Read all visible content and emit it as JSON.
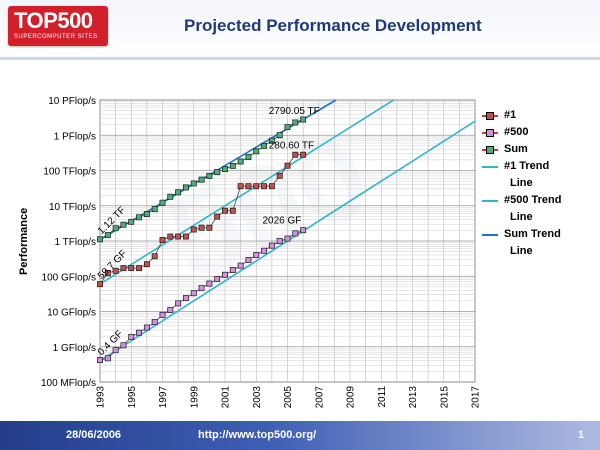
{
  "header": {
    "logo_text": "TOP500",
    "logo_sub": "SUPERCOMPUTER SITES",
    "title": "Projected Performance Development"
  },
  "footer": {
    "date": "28/06/2006",
    "url": "http://www.top500.org/",
    "page": "1"
  },
  "colors": {
    "n1": "#c0504d",
    "n500": "#d48ee6",
    "sum": "#4caf75",
    "n1_trend": "#2fb5c9",
    "n500_trend": "#2fb5c9",
    "sum_trend": "#1a73c9"
  },
  "chart_data": {
    "type": "line",
    "title": "Projected Performance Development",
    "xlabel": "",
    "ylabel": "Performance",
    "yscale": "log",
    "ylim_gflops": [
      0.1,
      10000000
    ],
    "xlim": [
      1993,
      2017
    ],
    "x_ticks": [
      "1993",
      "1995",
      "1997",
      "1999",
      "2001",
      "2003",
      "2005",
      "2007",
      "2009",
      "2011",
      "2013",
      "2015",
      "2017"
    ],
    "y_ticks": [
      {
        "label": "100 MFlop/s",
        "value": 0.1
      },
      {
        "label": "1 GFlop/s",
        "value": 1
      },
      {
        "label": "10 GFlop/s",
        "value": 10
      },
      {
        "label": "100 GFlop/s",
        "value": 100
      },
      {
        "label": "1 TFlop/s",
        "value": 1000
      },
      {
        "label": "10 TFlop/s",
        "value": 10000
      },
      {
        "label": "100 TFlop/s",
        "value": 100000
      },
      {
        "label": "1 PFlop/s",
        "value": 1000000
      },
      {
        "label": "10 PFlop/s",
        "value": 10000000
      }
    ],
    "series": [
      {
        "name": "#1",
        "key": "n1",
        "x": [
          1993.0,
          1993.5,
          1994.0,
          1994.5,
          1995.0,
          1995.5,
          1996.0,
          1996.5,
          1997.0,
          1997.5,
          1998.0,
          1998.5,
          1999.0,
          1999.5,
          2000.0,
          2000.5,
          2001.0,
          2001.5,
          2002.0,
          2002.5,
          2003.0,
          2003.5,
          2004.0,
          2004.5,
          2005.0,
          2005.5,
          2006.0
        ],
        "values": [
          59.7,
          124,
          143,
          170,
          170,
          170,
          220,
          368,
          1068,
          1338,
          1338,
          1338,
          2121,
          2379,
          2379,
          4938,
          7226,
          7226,
          35860,
          35860,
          35860,
          35860,
          35860,
          70720,
          136800,
          280600,
          280600
        ]
      },
      {
        "name": "#500",
        "key": "n500",
        "x": [
          1993.0,
          1993.5,
          1994.0,
          1994.5,
          1995.0,
          1995.5,
          1996.0,
          1996.5,
          1997.0,
          1997.5,
          1998.0,
          1998.5,
          1999.0,
          1999.5,
          2000.0,
          2000.5,
          2001.0,
          2001.5,
          2002.0,
          2002.5,
          2003.0,
          2003.5,
          2004.0,
          2004.5,
          2005.0,
          2005.5,
          2006.0
        ],
        "values": [
          0.42,
          0.47,
          0.8,
          1.1,
          1.9,
          2.5,
          3.5,
          5,
          8,
          11,
          17,
          24,
          33,
          46,
          62,
          83,
          110,
          150,
          200,
          290,
          400,
          530,
          740,
          1000,
          1170,
          1640,
          2026
        ]
      },
      {
        "name": "Sum",
        "key": "sum",
        "x": [
          1993.0,
          1993.5,
          1994.0,
          1994.5,
          1995.0,
          1995.5,
          1996.0,
          1996.5,
          1997.0,
          1997.5,
          1998.0,
          1998.5,
          1999.0,
          1999.5,
          2000.0,
          2000.5,
          2001.0,
          2001.5,
          2002.0,
          2002.5,
          2003.0,
          2003.5,
          2004.0,
          2004.5,
          2005.0,
          2005.5,
          2006.0
        ],
        "values": [
          1120,
          1470,
          2300,
          2900,
          3500,
          4700,
          5800,
          8000,
          12200,
          18000,
          24000,
          33000,
          43000,
          55000,
          70000,
          90000,
          110000,
          135000,
          180000,
          240000,
          350000,
          500000,
          700000,
          1000000,
          1700000,
          2300000,
          2790050
        ]
      },
      {
        "name": "#1 Trend Line",
        "key": "n1_trend",
        "trend": true,
        "from": [
          1993,
          60
        ],
        "to": [
          2011.8,
          10000000
        ]
      },
      {
        "name": "#500 Trend Line",
        "key": "n500_trend",
        "trend": true,
        "from": [
          1993,
          0.4
        ],
        "to": [
          2017,
          2500000
        ]
      },
      {
        "name": "Sum Trend Line",
        "key": "sum_trend",
        "trend": true,
        "from": [
          1993,
          1100
        ],
        "to": [
          2008.1,
          10000000
        ]
      }
    ],
    "annotations": [
      {
        "text": "1.12 TF",
        "x": 1993.1,
        "y": 1500,
        "rotate": true
      },
      {
        "text": "59.7 GF",
        "x": 1993.1,
        "y": 80,
        "rotate": true
      },
      {
        "text": "0.4 GF",
        "x": 1993.1,
        "y": 0.55,
        "rotate": true
      },
      {
        "text": "2790.05 TF",
        "x": 2003.8,
        "y": 4000000,
        "rotate": false
      },
      {
        "text": "280.60 TF",
        "x": 2003.8,
        "y": 420000,
        "rotate": false
      },
      {
        "text": "2026 GF",
        "x": 2003.4,
        "y": 3100,
        "rotate": false
      }
    ],
    "legend": [
      {
        "label": "#1",
        "key": "n1",
        "marker": true
      },
      {
        "label": "#500",
        "key": "n500",
        "marker": true
      },
      {
        "label": "Sum",
        "key": "sum",
        "marker": true
      },
      {
        "label": "#1 Trend\nLine",
        "key": "n1_trend",
        "marker": false
      },
      {
        "label": "#500 Trend\nLine",
        "key": "n500_trend",
        "marker": false
      },
      {
        "label": "Sum Trend\nLine",
        "key": "sum_trend",
        "marker": false
      }
    ]
  }
}
